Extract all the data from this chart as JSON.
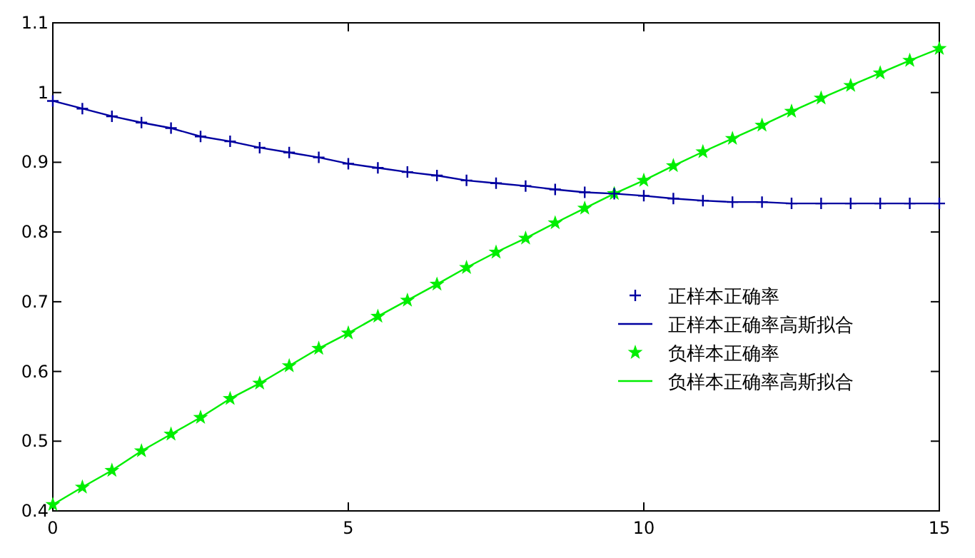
{
  "chart_data": {
    "type": "line",
    "x": [
      0,
      0.5,
      1,
      1.5,
      2,
      2.5,
      3,
      3.5,
      4,
      4.5,
      5,
      5.5,
      6,
      6.5,
      7,
      7.5,
      8,
      8.5,
      9,
      9.5,
      10,
      10.5,
      11,
      11.5,
      12,
      12.5,
      13,
      13.5,
      14,
      14.5,
      15
    ],
    "series": [
      {
        "name": "正样本正确率",
        "type": "scatter",
        "marker": "cross",
        "color": "#0000a0",
        "values": [
          0.988,
          0.977,
          0.966,
          0.957,
          0.949,
          0.937,
          0.93,
          0.921,
          0.914,
          0.907,
          0.898,
          0.892,
          0.886,
          0.881,
          0.874,
          0.87,
          0.866,
          0.861,
          0.857,
          0.855,
          0.852,
          0.848,
          0.845,
          0.843,
          0.843,
          0.841,
          0.841,
          0.841,
          0.841,
          0.841,
          0.841
        ]
      },
      {
        "name": "正样本正确率高斯拟合",
        "color": "#0000a0",
        "values": [
          0.988,
          0.977,
          0.966,
          0.957,
          0.949,
          0.937,
          0.93,
          0.921,
          0.914,
          0.907,
          0.898,
          0.892,
          0.886,
          0.881,
          0.874,
          0.87,
          0.866,
          0.861,
          0.857,
          0.855,
          0.852,
          0.848,
          0.845,
          0.843,
          0.843,
          0.841,
          0.841,
          0.841,
          0.841,
          0.841,
          0.841
        ]
      },
      {
        "name": "负样本正确率",
        "type": "scatter",
        "marker": "star",
        "color": "#00ee00",
        "values": [
          0.409,
          0.434,
          0.458,
          0.486,
          0.51,
          0.534,
          0.561,
          0.583,
          0.608,
          0.633,
          0.655,
          0.679,
          0.702,
          0.725,
          0.749,
          0.771,
          0.791,
          0.813,
          0.834,
          0.855,
          0.874,
          0.895,
          0.915,
          0.934,
          0.953,
          0.973,
          0.992,
          1.01,
          1.028,
          1.046,
          1.063
        ]
      },
      {
        "name": "负样本正确率高斯拟合",
        "color": "#00ee00",
        "values": [
          0.409,
          0.434,
          0.458,
          0.486,
          0.51,
          0.534,
          0.561,
          0.583,
          0.608,
          0.633,
          0.655,
          0.679,
          0.702,
          0.725,
          0.749,
          0.771,
          0.791,
          0.813,
          0.834,
          0.855,
          0.874,
          0.895,
          0.915,
          0.934,
          0.953,
          0.973,
          0.992,
          1.01,
          1.028,
          1.046,
          1.063
        ]
      }
    ],
    "xlim": [
      0,
      15
    ],
    "xticks": [
      0,
      5,
      10,
      15
    ],
    "ylim": [
      0.4,
      1.1
    ],
    "yticks": [
      0.4,
      0.5,
      0.6,
      0.7,
      0.8,
      0.9,
      1,
      1.1
    ],
    "grid": false,
    "legend": "right"
  }
}
